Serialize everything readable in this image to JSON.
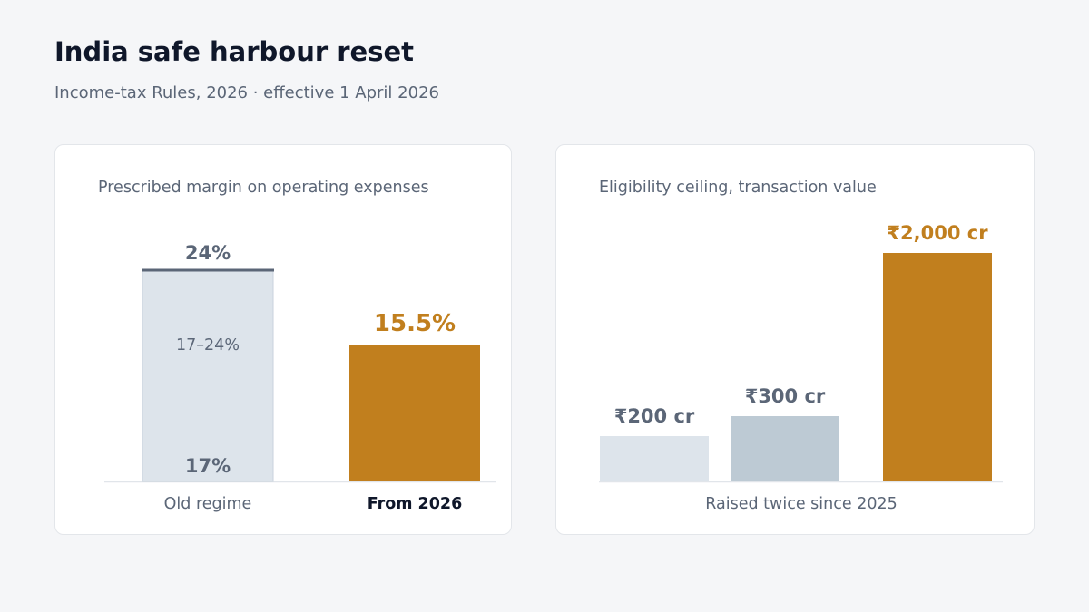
{
  "header": {
    "title": "India safe harbour reset",
    "subtitle": "Income-tax Rules, 2026  ·  effective 1 April 2026"
  },
  "colors": {
    "accent": "#c17f1e",
    "muted_text": "#5b6677",
    "old_fill": "#dde4eb",
    "mid_fill": "#bdcad4",
    "dark_text": "#0f172a"
  },
  "chart_data": [
    {
      "type": "bar",
      "title": "Prescribed margin on operating expenses",
      "categories": [
        "Old regime",
        "From 2026"
      ],
      "bars": [
        {
          "label": "Old regime",
          "range": [
            17,
            24
          ],
          "low_label": "17%",
          "high_label": "24%",
          "range_label": "17–24%"
        },
        {
          "label": "From 2026",
          "value": 15.5,
          "value_label": "15.5%",
          "highlight": true
        }
      ],
      "ylim": [
        0,
        24
      ]
    },
    {
      "type": "bar",
      "title": "Eligibility ceiling, transaction value",
      "xlabel": "Raised twice since 2025",
      "values": [
        200,
        300,
        2000
      ],
      "value_labels": [
        "₹200 cr",
        "₹300 cr",
        "₹2,000 cr"
      ],
      "highlight_index": 2,
      "ylim": [
        0,
        2000
      ]
    }
  ]
}
